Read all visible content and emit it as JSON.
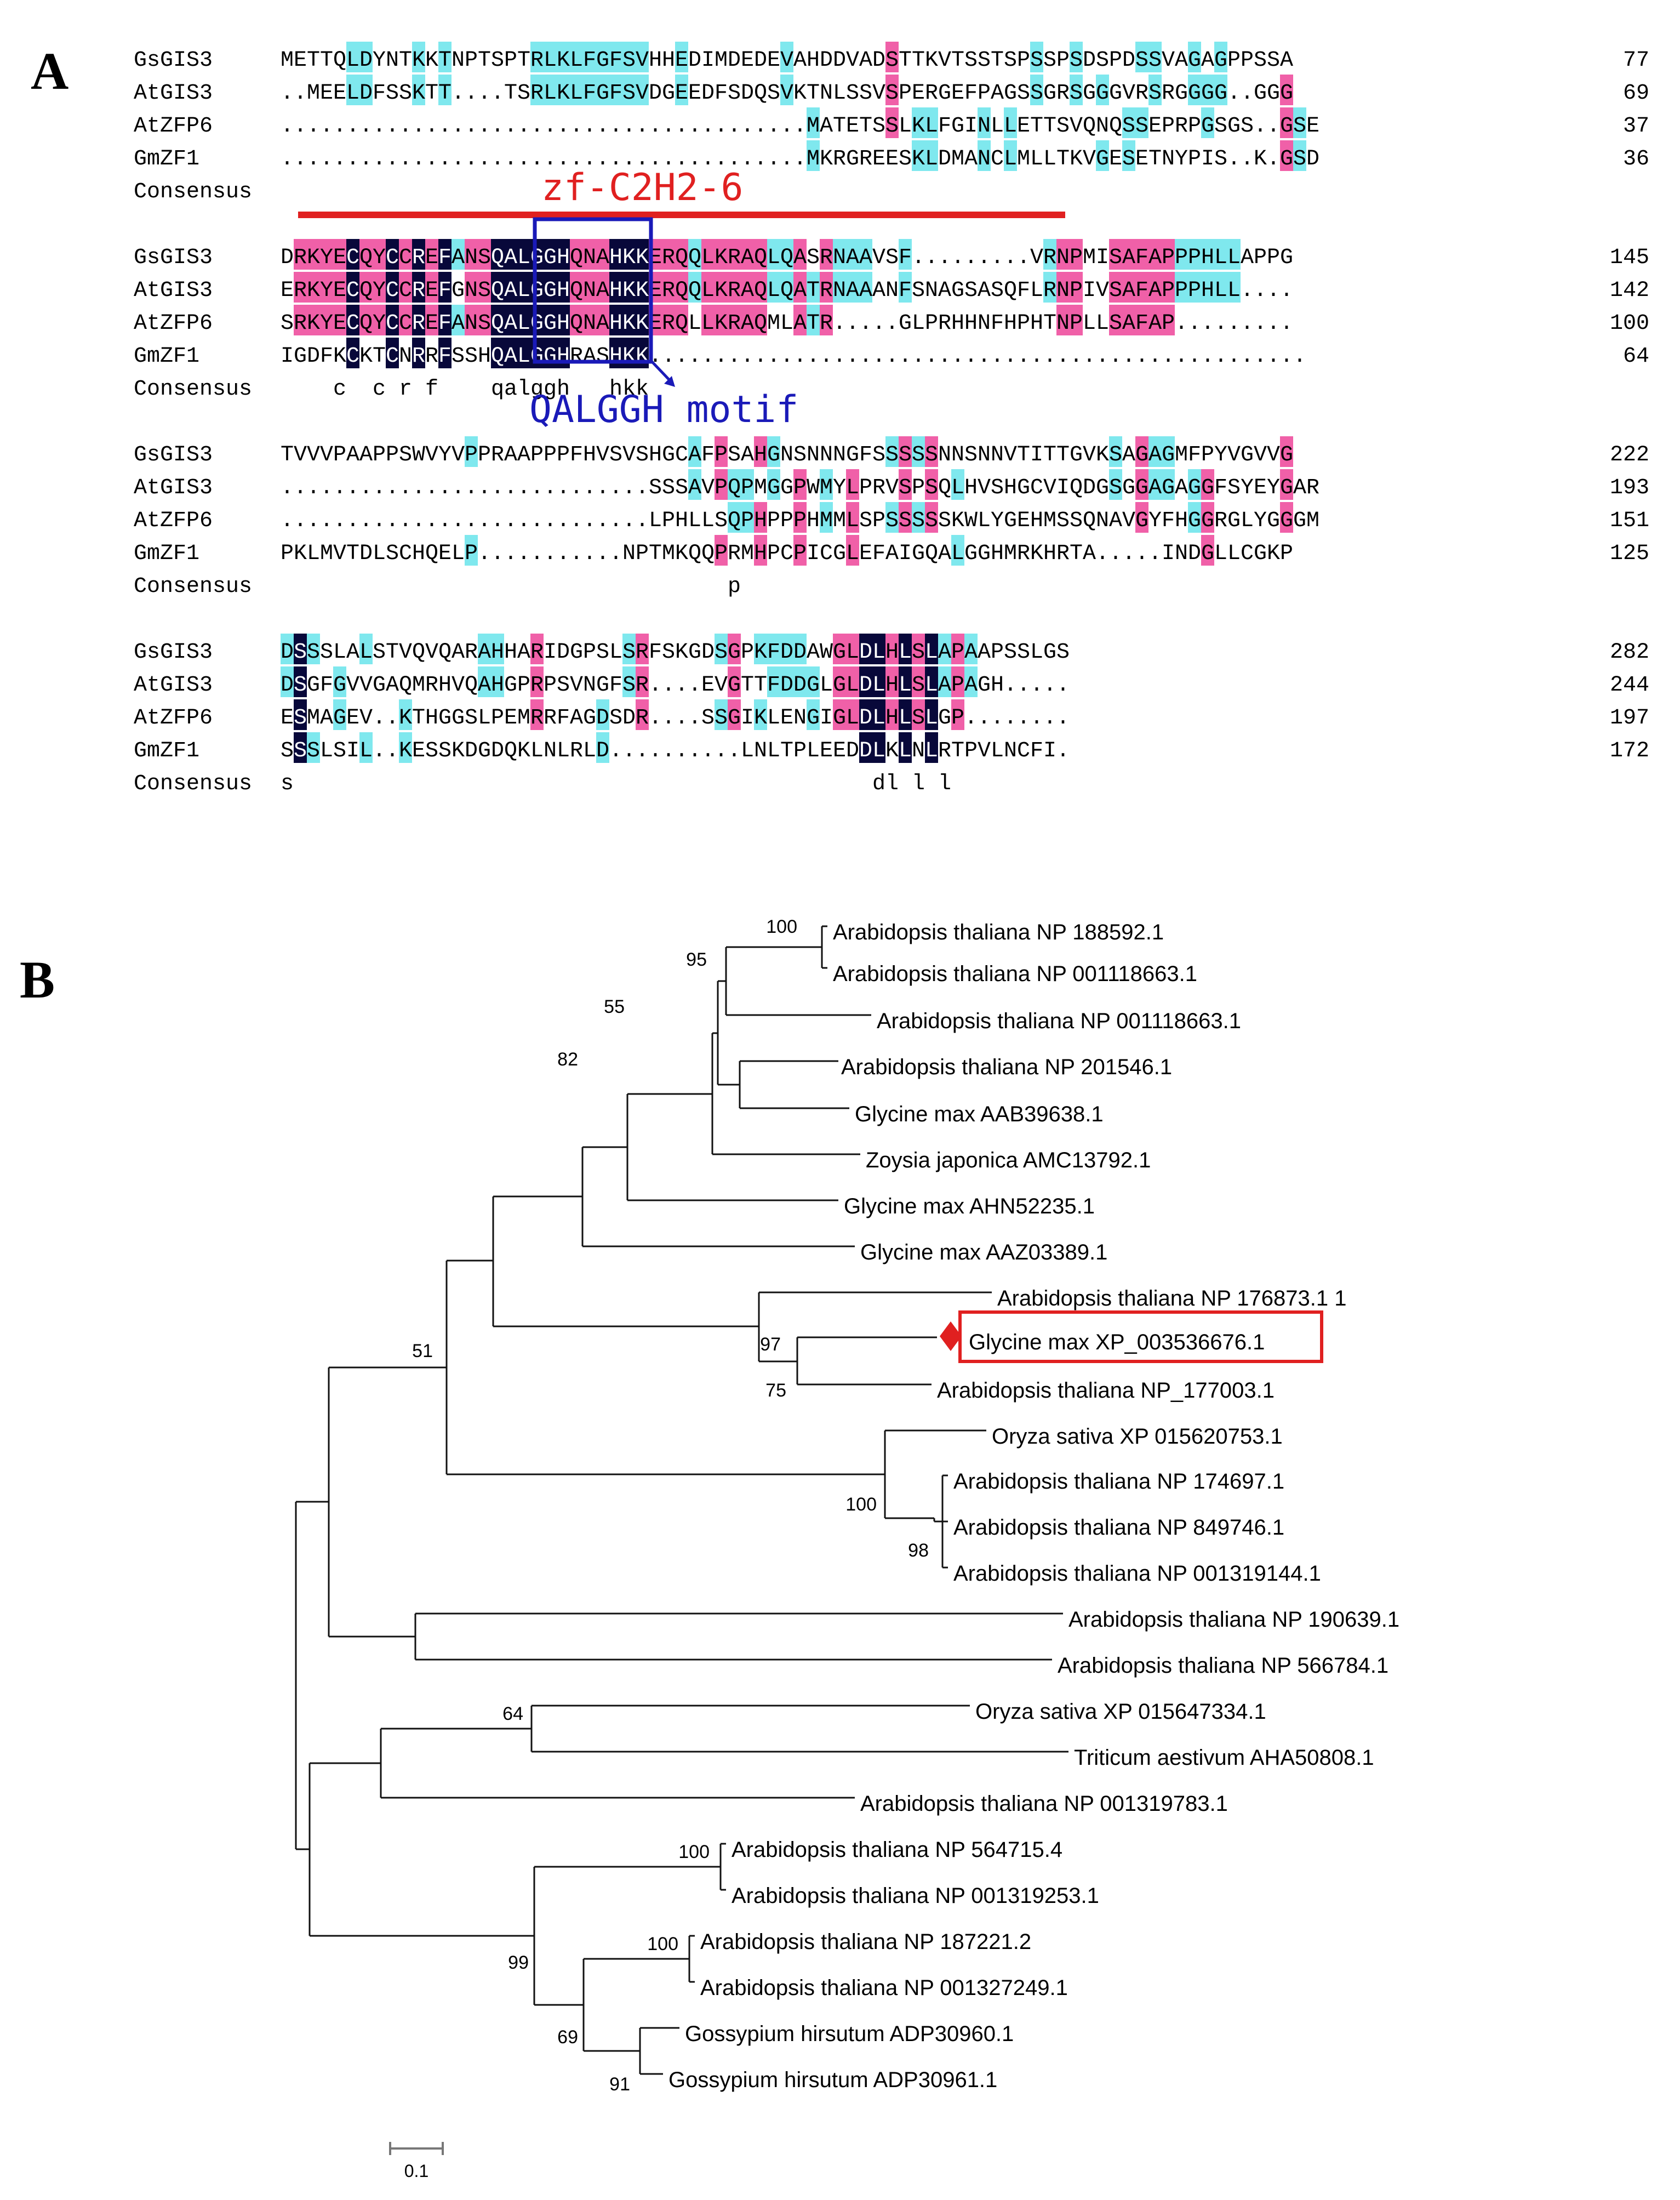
{
  "panel_a": {
    "letter": "A",
    "annotation_zf": "zf-C2H2-6",
    "annotation_motif": "QALGGH motif",
    "colors": {
      "black_cell": "#08083a",
      "pink_cell": "#f060a8",
      "cyan_cell": "#7fe8ee",
      "zf_bar": "#e02020",
      "motif_box": "#1a1ab8"
    },
    "blocks": [
      {
        "rows": [
          {
            "name": "GsGIS3",
            "seq": "METTQLDYNTKKTNPTSPTRLKLFGFSVHHEDIMDEDEVAHDDVADSTTKVTSSTSPSSPSDSPDSSVAGAGPPSSA",
            "num": "77"
          },
          {
            "name": "AtGIS3",
            "seq": "..MEELDFSSKTT....TSRLKLFGFSVDGEEDFSDQSVKTNLSSVSPERGEFPAGSSGRSGGGVRSRGGGG..GGG",
            "num": "69"
          },
          {
            "name": "AtZFP6",
            "seq": "........................................MATETSSLKLFGINLLETTSVQNQSSEPRPGSGS..GSE",
            "num": "37"
          },
          {
            "name": "GmZF1",
            "seq": "........................................MKRGREESKLDMANCLMLLTKVGESETNYPIS..K.GSD",
            "num": "36"
          }
        ],
        "consensus_label": "Consensus",
        "consensus": ""
      },
      {
        "rows": [
          {
            "name": "GsGIS3",
            "seq": "DRKYECQYCCREFANSQALGGHQNAHKKERQQLKRAQLQASRNAAVSF.........VRNPMISAFAPPPHLLAPPG",
            "num": "145"
          },
          {
            "name": "AtGIS3",
            "seq": "ERKYECQYCCREFGNSQALGGHQNAHKKERQQLKRAQLQATRNAAANFSNAGSASQFLRNPIVSAFAPPPHLL....",
            "num": "142"
          },
          {
            "name": "AtZFP6",
            "seq": "SRKYECQYCCREFANSQALGGHQNAHKKERQLLKRAQMLATR.....GLPRHHNFHPHTNPLLSAFAP.........",
            "num": "100"
          },
          {
            "name": "GmZF1",
            "seq": "IGDFKCKTCNRRFSSHQALGGHRASHKK..................................................",
            "num": "64"
          }
        ],
        "consensus_label": "Consensus",
        "consensus": "    c  c r f    qalggh   hkk"
      },
      {
        "rows": [
          {
            "name": "GsGIS3",
            "seq": "TVVVPAAPPSWVYVPPRAAPPPFHVSVSHGCAFPSAHGNSNNNGFSSSSSNNSNNVTITTGVKSAGAGMFPYVGVVG",
            "num": "222"
          },
          {
            "name": "AtGIS3",
            "seq": "............................SSSAVPQPMGGPWMYLPRVSPSQLHVSHGCVIQDGSGGAGAGGFSYEYGAR",
            "num": "193"
          },
          {
            "name": "AtZFP6",
            "seq": "............................LPHLLSQPHPPPHMMLSPSSSSSKWLYGEHMSSQNAVGYFHGGRGLYGGGM",
            "num": "151"
          },
          {
            "name": "GmZF1",
            "seq": "PKLMVTDLSCHQELP...........NPTMKQQPRMHPCPICGLEFAIGQALGGHMRKHRTA.....INDGLLCGKP",
            "num": "125"
          }
        ],
        "consensus_label": "Consensus",
        "consensus": "                                  p"
      },
      {
        "rows": [
          {
            "name": "GsGIS3",
            "seq": "DSSSLALSTVQVQARAHHARIDGPSLSRFSKGDSGPKFDDAWGLDLHLSLAPAAPSSLGS",
            "num": "282"
          },
          {
            "name": "AtGIS3",
            "seq": "DSGFGVVGAQMRHVQAHGPRPSVNGFSR....EVGTTFDDGLGLDLHLSLAPAGH.....",
            "num": "244"
          },
          {
            "name": "AtZFP6",
            "seq": "ESMAGEV..KTHGGSLPEMRRFAGDSDR....SSGIKLENGIGLDLHLSLGP........",
            "num": "197"
          },
          {
            "name": "GmZF1",
            "seq": "SSSLSIL..KESSKDGDQKLNLRLD..........LNLTPLEEDDLKLNLRTPVLNCFI.",
            "num": "172"
          }
        ],
        "consensus_label": "Consensus",
        "consensus": "s                                            dl l l"
      }
    ]
  },
  "panel_b": {
    "letter": "B",
    "highlight_color": "#e02020",
    "scale_label": "0.1",
    "leaves": [
      {
        "label": "Arabidopsis thaliana NP 188592.1"
      },
      {
        "label": "Arabidopsis thaliana NP 001118663.1"
      },
      {
        "label": "Arabidopsis thaliana NP 001118663.1"
      },
      {
        "label": "Arabidopsis thaliana NP 201546.1"
      },
      {
        "label": "Glycine max AAB39638.1"
      },
      {
        "label": "Zoysia japonica AMC13792.1"
      },
      {
        "label": "Glycine max AHN52235.1"
      },
      {
        "label": "Glycine max AAZ03389.1"
      },
      {
        "label": "Arabidopsis thaliana NP 176873.1 1"
      },
      {
        "label": "Glycine max XP_003536676.1",
        "highlight": true
      },
      {
        "label": "Arabidopsis thaliana NP_177003.1"
      },
      {
        "label": "Oryza sativa  XP 015620753.1"
      },
      {
        "label": "Arabidopsis thaliana NP 174697.1"
      },
      {
        "label": "Arabidopsis thaliana NP 849746.1"
      },
      {
        "label": "Arabidopsis thaliana NP 001319144.1"
      },
      {
        "label": "Arabidopsis thaliana NP 190639.1"
      },
      {
        "label": "Arabidopsis thaliana NP 566784.1"
      },
      {
        "label": "Oryza sativa XP 015647334.1"
      },
      {
        "label": "Triticum aestivum AHA50808.1"
      },
      {
        "label": "Arabidopsis thaliana NP 001319783.1"
      },
      {
        "label": "Arabidopsis thaliana NP 564715.4"
      },
      {
        "label": "Arabidopsis thaliana NP 001319253.1"
      },
      {
        "label": "Arabidopsis thaliana NP 187221.2"
      },
      {
        "label": "Arabidopsis thaliana NP 001327249.1"
      },
      {
        "label": "Gossypium hirsutum ADP30960.1"
      },
      {
        "label": "Gossypium hirsutum ADP30961.1"
      }
    ],
    "bootstrap": [
      "100",
      "95",
      "55",
      "82",
      "97",
      "75",
      "51",
      "100",
      "98",
      "64",
      "100",
      "100",
      "99",
      "69",
      "91"
    ]
  }
}
